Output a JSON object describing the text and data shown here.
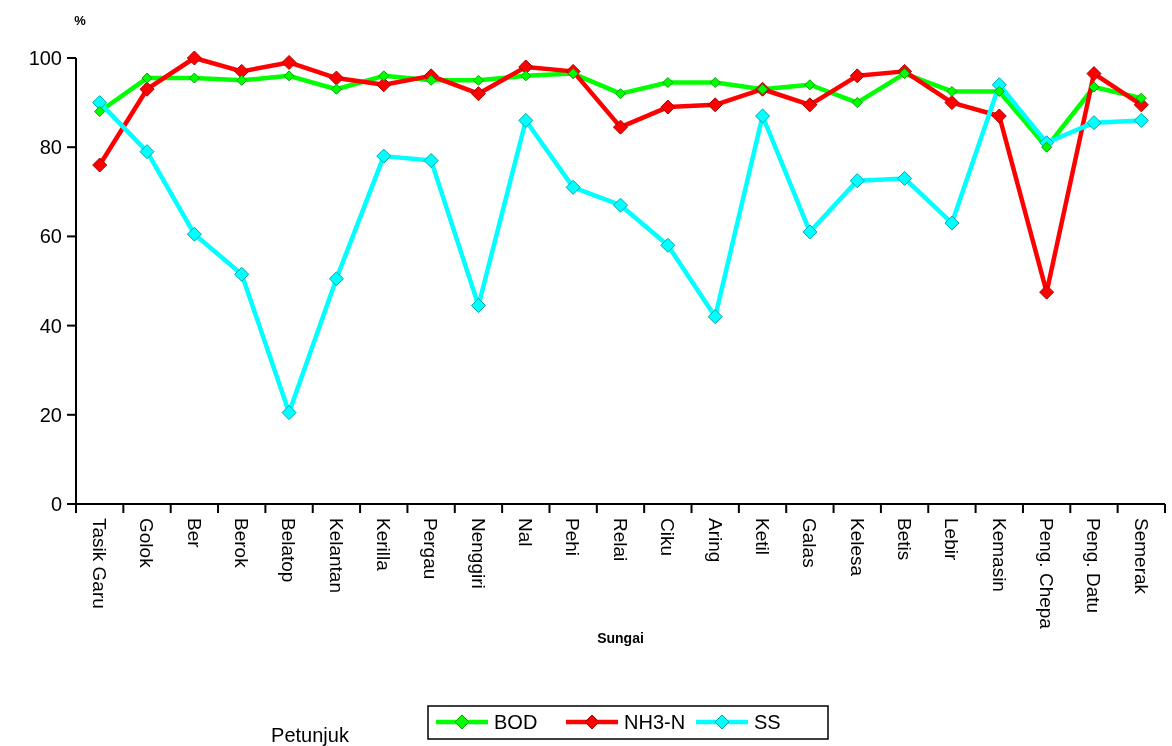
{
  "chart_data": {
    "type": "line",
    "xlabel": "Sungai",
    "ylabel": "%",
    "legend_title": "Petunjuk",
    "legend": "bottom",
    "marker": "diamond",
    "grid": false,
    "categories": [
      "Tasik Garu",
      "Golok",
      "Ber",
      "Berok",
      "Belatop",
      "Kelantan",
      "Kerilla",
      "Pergau",
      "Nenggiri",
      "Nal",
      "Pehi",
      "Relai",
      "Ciku",
      "Aring",
      "Ketil",
      "Galas",
      "Kelesa",
      "Betis",
      "Lebir",
      "Kemasin",
      "Peng. Chepa",
      "Peng. Datu",
      "Semerak"
    ],
    "ylim": [
      0,
      100
    ],
    "yticks": [
      0,
      20,
      40,
      60,
      80,
      100
    ],
    "series": [
      {
        "name": "BOD",
        "color": "#00ff00",
        "values": [
          88,
          95.5,
          95.5,
          95,
          96,
          93,
          96,
          95,
          95,
          96,
          96.5,
          92,
          94.5,
          94.5,
          93,
          94,
          90,
          96.5,
          92.5,
          92.5,
          80,
          93.5,
          91
        ]
      },
      {
        "name": "NH3-N",
        "color": "#ff0000",
        "values": [
          76,
          93,
          100,
          97,
          99,
          95.5,
          94,
          96,
          92,
          98,
          97,
          84.5,
          89,
          89.5,
          93,
          89.5,
          96,
          97,
          90,
          87,
          47.5,
          96.5,
          89.5
        ]
      },
      {
        "name": "SS",
        "color": "#00ffff",
        "values": [
          90,
          79,
          60.5,
          51.5,
          20.5,
          50.5,
          78,
          77,
          44.5,
          86,
          71,
          67,
          58,
          42,
          87,
          61,
          72.5,
          73,
          63,
          94,
          81,
          85.5,
          86
        ]
      }
    ]
  }
}
